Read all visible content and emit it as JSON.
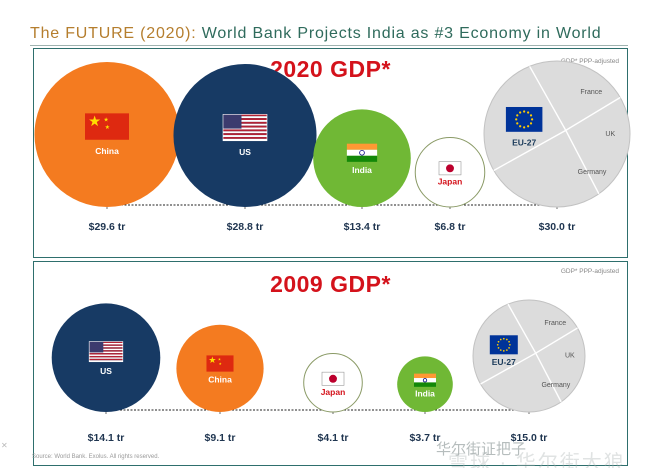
{
  "headline": {
    "prefix": "The FUTURE (2020):",
    "text": "World Bank Projects India as #3 Economy in World"
  },
  "colors": {
    "china": "#f47b20",
    "us": "#173a64",
    "india": "#70b835",
    "japan": "#ffffff",
    "eu": "#dcdcdc",
    "title_red": "#d4121b",
    "panel_border": "#2e6f6d"
  },
  "chart_data": [
    {
      "type": "bubble",
      "title": "2020 GDP*",
      "note": "GDP* PPP-adjusted",
      "unit": "trillion USD (PPP)",
      "series": [
        {
          "name": "China",
          "value": 29.6,
          "label": "$29.6 tr",
          "flag": "china"
        },
        {
          "name": "US",
          "value": 28.8,
          "label": "$28.8 tr",
          "flag": "us"
        },
        {
          "name": "India",
          "value": 13.4,
          "label": "$13.4 tr",
          "flag": "india"
        },
        {
          "name": "Japan",
          "value": 6.8,
          "label": "$6.8 tr",
          "flag": "japan"
        },
        {
          "name": "EU-27",
          "value": 30.0,
          "label": "$30.0 tr",
          "flag": "eu",
          "segments": [
            "France",
            "UK",
            "Germany"
          ]
        }
      ]
    },
    {
      "type": "bubble",
      "title": "2009 GDP*",
      "note": "GDP* PPP-adjusted",
      "unit": "trillion USD (PPP)",
      "series": [
        {
          "name": "US",
          "value": 14.1,
          "label": "$14.1 tr",
          "flag": "us"
        },
        {
          "name": "China",
          "value": 9.1,
          "label": "$9.1 tr",
          "flag": "china"
        },
        {
          "name": "Japan",
          "value": 4.1,
          "label": "$4.1 tr",
          "flag": "japan"
        },
        {
          "name": "India",
          "value": 3.7,
          "label": "$3.7 tr",
          "flag": "india"
        },
        {
          "name": "EU-27",
          "value": 15.0,
          "label": "$15.0 tr",
          "flag": "eu",
          "segments": [
            "France",
            "UK",
            "Germany"
          ]
        }
      ]
    }
  ],
  "footer": {
    "copyright": "Source: World Bank. Exolus. All rights reserved."
  },
  "watermark": {
    "text": "华尔街证把子",
    "site": "雪球 · 华尔街大狼"
  }
}
